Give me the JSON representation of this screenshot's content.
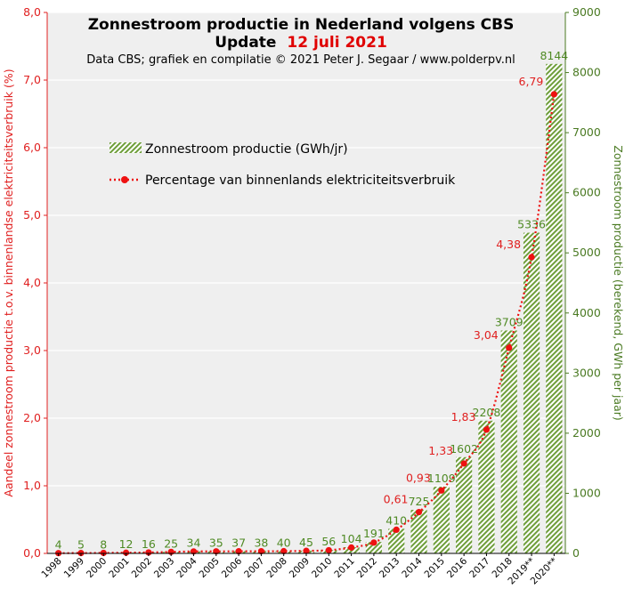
{
  "chart_data": {
    "type": "bar",
    "title_prefix": "Zonnestroom productie in Nederland volgens CBS",
    "update_label": "Update",
    "update_date": "12 juli 2021",
    "subtitle": "Data CBS;  grafiek en compilatie  © 2021 Peter J. Segaar / www.polderpv.nl",
    "categories": [
      "1998",
      "1999",
      "2000",
      "2001",
      "2002",
      "2003",
      "2004",
      "2005",
      "2006",
      "2007",
      "2008",
      "2009",
      "2010",
      "2011",
      "2012",
      "2013",
      "2014",
      "2015",
      "2016",
      "2017",
      "2018",
      "2019**",
      "2020**"
    ],
    "series": [
      {
        "name": "Zonnestroom productie (GWh/jr)",
        "axis": "right",
        "values": [
          4,
          5,
          8,
          12,
          16,
          25,
          34,
          35,
          37,
          38,
          40,
          45,
          56,
          104,
          191,
          410,
          725,
          1109,
          1602,
          2208,
          3709,
          5336,
          8144
        ],
        "labels": [
          "4",
          "5",
          "8",
          "12",
          "16",
          "25",
          "34",
          "35",
          "37",
          "38",
          "40",
          "45",
          "56",
          "104",
          "191",
          "410",
          "725",
          "1109",
          "1602",
          "2208",
          "3709",
          "5336",
          "8144"
        ]
      },
      {
        "name": "Percentage van binnenlands elektriciteitsverbruik",
        "axis": "left",
        "values": [
          0.004,
          0.005,
          0.007,
          0.01,
          0.014,
          0.022,
          0.029,
          0.03,
          0.031,
          0.032,
          0.033,
          0.038,
          0.047,
          0.087,
          0.16,
          0.35,
          0.61,
          0.93,
          1.33,
          1.83,
          3.04,
          4.38,
          6.79
        ],
        "point_labels": {
          "16": "0,61",
          "17": "0,93",
          "18": "1,33",
          "19": "1,83",
          "20": "3,04",
          "21": "4,38",
          "22": "6,79"
        }
      }
    ],
    "ylabel_left": "Aandeel zonnestroom productie t.o.v. binnenlandse elektriciteitsverbruik (%)",
    "ylabel_right": "Zonnestroom productie (berekend, GWh per jaar)",
    "ylim_left": [
      0,
      8
    ],
    "ylim_right": [
      0,
      9000
    ],
    "yticks_left": [
      "0,0",
      "1,0",
      "2,0",
      "3,0",
      "4,0",
      "5,0",
      "6,0",
      "7,0",
      "8,0"
    ],
    "yticks_right": [
      "0",
      "1000",
      "2000",
      "3000",
      "4000",
      "5000",
      "6000",
      "7000",
      "8000",
      "9000"
    ],
    "grid": true,
    "legend": "upper-left",
    "colors": {
      "bar": "#6e9e3a",
      "line": "#ee1111",
      "plot_bg": "#efefef",
      "left_axis": "#e02020",
      "right_axis": "#4a7a22",
      "date": "#e00000"
    }
  }
}
